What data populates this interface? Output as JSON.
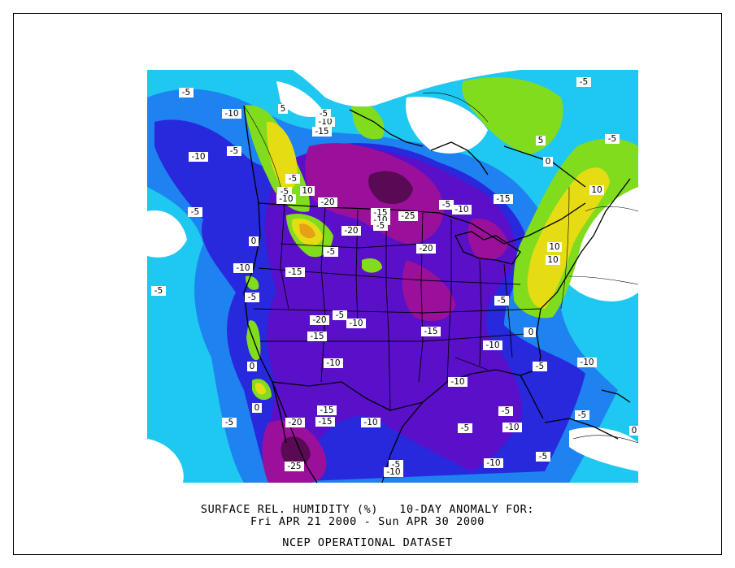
{
  "title": {
    "line1": "SURFACE REL. HUMIDITY (%)   10-DAY ANOMALY FOR:",
    "line2": "Fri APR 21 2000 - Sun APR 30 2000",
    "line3": "NCEP OPERATIONAL DATASET"
  },
  "colors": {
    "minus25": "#5a0a55",
    "minus20": "#9a109a",
    "minus15": "#5a10c8",
    "minus10": "#2828dc",
    "minus5": "#1e82f0",
    "zero": "#1ec8f0",
    "zero_plus": "#ffffff",
    "plus5": "#82dc1e",
    "plus10": "#e6dc14",
    "plus15": "#e6a014"
  },
  "contour_labels": [
    {
      "text": "-5"
    },
    {
      "text": "-10"
    },
    {
      "text": "-10"
    },
    {
      "text": "-5"
    },
    {
      "text": "-5"
    },
    {
      "text": "5"
    },
    {
      "text": "-15"
    },
    {
      "text": "-10"
    },
    {
      "text": "-5"
    },
    {
      "text": "-5"
    },
    {
      "text": "10"
    },
    {
      "text": "-5"
    },
    {
      "text": "-10"
    },
    {
      "text": "-20"
    },
    {
      "text": "-15"
    },
    {
      "text": "-10"
    },
    {
      "text": "-5"
    },
    {
      "text": "-25"
    },
    {
      "text": "-5"
    },
    {
      "text": "-10"
    },
    {
      "text": "-15"
    },
    {
      "text": "-20"
    },
    {
      "text": "-20"
    },
    {
      "text": "-5"
    },
    {
      "text": "0"
    },
    {
      "text": "-10"
    },
    {
      "text": "-15"
    },
    {
      "text": "-5"
    },
    {
      "text": "-5"
    },
    {
      "text": "-20"
    },
    {
      "text": "-5"
    },
    {
      "text": "-10"
    },
    {
      "text": "-15"
    },
    {
      "text": "-15"
    },
    {
      "text": "-10"
    },
    {
      "text": "-5"
    },
    {
      "text": "0"
    },
    {
      "text": "-10"
    },
    {
      "text": "-5"
    },
    {
      "text": "-10"
    },
    {
      "text": "-10"
    },
    {
      "text": "-15"
    },
    {
      "text": "-5"
    },
    {
      "text": "-15"
    },
    {
      "text": "-20"
    },
    {
      "text": "-10"
    },
    {
      "text": "-5"
    },
    {
      "text": "-10"
    },
    {
      "text": "-5"
    },
    {
      "text": "-5"
    },
    {
      "text": "-25"
    },
    {
      "text": "-5"
    },
    {
      "text": "-10"
    },
    {
      "text": "-10"
    },
    {
      "text": "-5"
    },
    {
      "text": "0"
    },
    {
      "text": "0"
    },
    {
      "text": "5"
    },
    {
      "text": "10"
    },
    {
      "text": "10"
    },
    {
      "text": "10"
    },
    {
      "text": "0"
    },
    {
      "text": "-5"
    },
    {
      "text": "0"
    },
    {
      "text": "-5"
    },
    {
      "text": "0"
    }
  ]
}
